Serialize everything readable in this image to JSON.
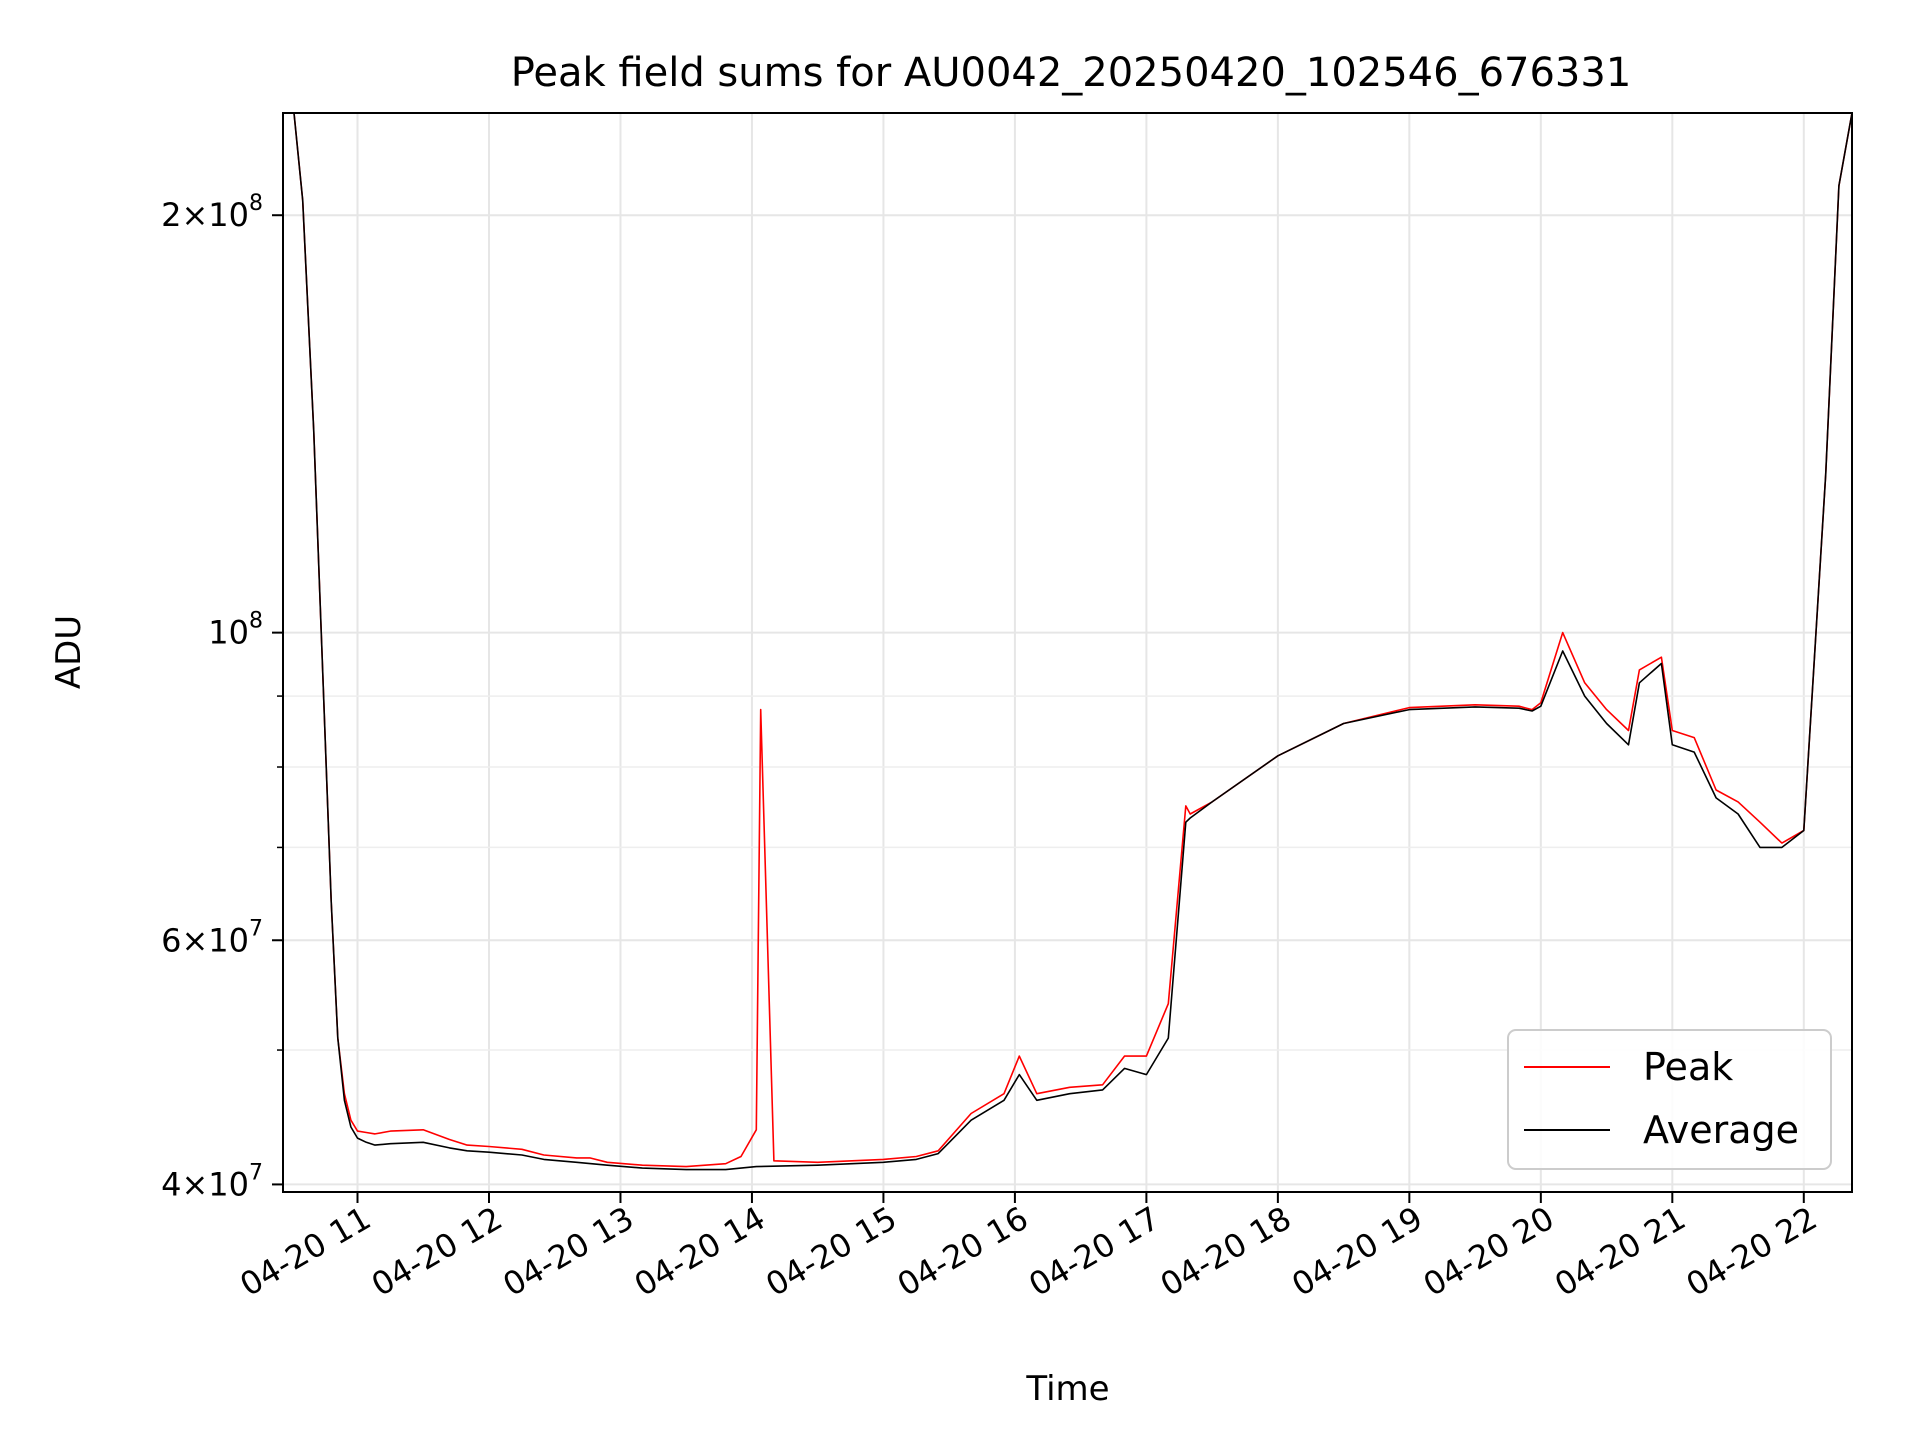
{
  "chart_data": {
    "type": "line",
    "title": "Peak field sums for AU0042_20250420_102546_676331",
    "xlabel": "Time",
    "ylabel": "ADU",
    "yscale": "log",
    "xlim": [
      "2025-04-20 10:26",
      "2025-04-20 22:22"
    ],
    "ylim": [
      39500000,
      237000000
    ],
    "grid": true,
    "legend_position": "lower-right",
    "x_ticks": [
      "04-20 11",
      "04-20 12",
      "04-20 13",
      "04-20 14",
      "04-20 15",
      "04-20 16",
      "04-20 17",
      "04-20 18",
      "04-20 19",
      "04-20 20",
      "04-20 21",
      "04-20 22"
    ],
    "y_ticks": [
      {
        "value": 40000000,
        "base": "4",
        "exp": "7"
      },
      {
        "value": 60000000,
        "base": "6",
        "exp": "7"
      },
      {
        "value": 100000000,
        "base": "",
        "exp": "8"
      },
      {
        "value": 200000000,
        "base": "2",
        "exp": "8"
      }
    ],
    "y_minor_ticks": [
      50000000,
      70000000,
      80000000,
      90000000
    ],
    "series": [
      {
        "name": "Peak",
        "color": "#ff0000",
        "x": [
          "2025-04-20 10:26",
          "2025-04-20 10:31",
          "2025-04-20 10:35",
          "2025-04-20 10:40",
          "2025-04-20 10:44",
          "2025-04-20 10:48",
          "2025-04-20 10:51",
          "2025-04-20 10:54",
          "2025-04-20 10:57",
          "2025-04-20 11:00",
          "2025-04-20 11:04",
          "2025-04-20 11:08",
          "2025-04-20 11:15",
          "2025-04-20 11:30",
          "2025-04-20 11:42",
          "2025-04-20 11:50",
          "2025-04-20 12:00",
          "2025-04-20 12:15",
          "2025-04-20 12:25",
          "2025-04-20 12:40",
          "2025-04-20 12:46",
          "2025-04-20 12:54",
          "2025-04-20 13:10",
          "2025-04-20 13:30",
          "2025-04-20 13:48",
          "2025-04-20 13:55",
          "2025-04-20 14:02",
          "2025-04-20 14:04",
          "2025-04-20 14:10",
          "2025-04-20 14:30",
          "2025-04-20 15:00",
          "2025-04-20 15:15",
          "2025-04-20 15:25",
          "2025-04-20 15:40",
          "2025-04-20 15:55",
          "2025-04-20 16:02",
          "2025-04-20 16:10",
          "2025-04-20 16:25",
          "2025-04-20 16:40",
          "2025-04-20 16:50",
          "2025-04-20 17:00",
          "2025-04-20 17:10",
          "2025-04-20 17:18",
          "2025-04-20 17:20",
          "2025-04-20 17:30",
          "2025-04-20 18:00",
          "2025-04-20 18:30",
          "2025-04-20 19:00",
          "2025-04-20 19:30",
          "2025-04-20 19:50",
          "2025-04-20 19:56",
          "2025-04-20 20:00",
          "2025-04-20 20:10",
          "2025-04-20 20:20",
          "2025-04-20 20:30",
          "2025-04-20 20:40",
          "2025-04-20 20:45",
          "2025-04-20 20:55",
          "2025-04-20 21:00",
          "2025-04-20 21:10",
          "2025-04-20 21:20",
          "2025-04-20 21:30",
          "2025-04-20 21:40",
          "2025-04-20 21:50",
          "2025-04-20 22:00",
          "2025-04-20 22:10",
          "2025-04-20 22:16",
          "2025-04-20 22:22"
        ],
        "y": [
          237000000,
          237000000,
          205000000,
          140000000,
          95000000,
          64000000,
          51000000,
          46500000,
          44500000,
          43700000,
          43600000,
          43500000,
          43700000,
          43800000,
          43100000,
          42700000,
          42600000,
          42400000,
          42000000,
          41800000,
          41800000,
          41500000,
          41300000,
          41200000,
          41400000,
          41900000,
          43800000,
          88000000,
          41600000,
          41500000,
          41700000,
          41900000,
          42300000,
          45000000,
          46500000,
          49500000,
          46500000,
          47000000,
          47200000,
          49500000,
          49500000,
          54000000,
          75000000,
          74000000,
          75500000,
          81500000,
          86000000,
          88300000,
          88700000,
          88500000,
          88000000,
          89000000,
          100000000,
          92000000,
          88000000,
          85000000,
          94000000,
          96000000,
          85000000,
          84000000,
          77000000,
          75500000,
          73000000,
          70500000,
          72000000,
          130000000,
          210000000,
          237000000
        ]
      },
      {
        "name": "Average",
        "color": "#000000",
        "x": [
          "2025-04-20 10:26",
          "2025-04-20 10:31",
          "2025-04-20 10:35",
          "2025-04-20 10:40",
          "2025-04-20 10:44",
          "2025-04-20 10:48",
          "2025-04-20 10:51",
          "2025-04-20 10:54",
          "2025-04-20 10:57",
          "2025-04-20 11:00",
          "2025-04-20 11:04",
          "2025-04-20 11:08",
          "2025-04-20 11:15",
          "2025-04-20 11:30",
          "2025-04-20 11:42",
          "2025-04-20 11:50",
          "2025-04-20 12:00",
          "2025-04-20 12:15",
          "2025-04-20 12:25",
          "2025-04-20 12:40",
          "2025-04-20 12:54",
          "2025-04-20 13:10",
          "2025-04-20 13:30",
          "2025-04-20 13:48",
          "2025-04-20 14:02",
          "2025-04-20 14:30",
          "2025-04-20 15:00",
          "2025-04-20 15:15",
          "2025-04-20 15:25",
          "2025-04-20 15:40",
          "2025-04-20 15:55",
          "2025-04-20 16:02",
          "2025-04-20 16:10",
          "2025-04-20 16:25",
          "2025-04-20 16:40",
          "2025-04-20 16:50",
          "2025-04-20 17:00",
          "2025-04-20 17:10",
          "2025-04-20 17:18",
          "2025-04-20 17:20",
          "2025-04-20 17:30",
          "2025-04-20 18:00",
          "2025-04-20 18:30",
          "2025-04-20 19:00",
          "2025-04-20 19:30",
          "2025-04-20 19:50",
          "2025-04-20 19:56",
          "2025-04-20 20:00",
          "2025-04-20 20:10",
          "2025-04-20 20:20",
          "2025-04-20 20:30",
          "2025-04-20 20:40",
          "2025-04-20 20:45",
          "2025-04-20 20:55",
          "2025-04-20 21:00",
          "2025-04-20 21:10",
          "2025-04-20 21:20",
          "2025-04-20 21:30",
          "2025-04-20 21:40",
          "2025-04-20 21:50",
          "2025-04-20 22:00",
          "2025-04-20 22:10",
          "2025-04-20 22:16",
          "2025-04-20 22:22"
        ],
        "y": [
          237000000,
          237000000,
          205000000,
          140000000,
          95000000,
          64000000,
          51000000,
          46000000,
          44000000,
          43200000,
          42900000,
          42700000,
          42800000,
          42900000,
          42500000,
          42300000,
          42200000,
          42000000,
          41700000,
          41500000,
          41300000,
          41100000,
          41000000,
          41000000,
          41200000,
          41300000,
          41500000,
          41700000,
          42100000,
          44500000,
          46000000,
          48000000,
          46000000,
          46500000,
          46800000,
          48500000,
          48000000,
          51000000,
          73000000,
          73500000,
          75500000,
          81500000,
          86000000,
          88000000,
          88400000,
          88200000,
          87800000,
          88500000,
          97000000,
          90000000,
          86000000,
          83000000,
          92000000,
          95000000,
          83000000,
          82000000,
          76000000,
          74000000,
          70000000,
          70000000,
          72000000,
          130000000,
          210000000,
          237000000
        ]
      }
    ]
  }
}
